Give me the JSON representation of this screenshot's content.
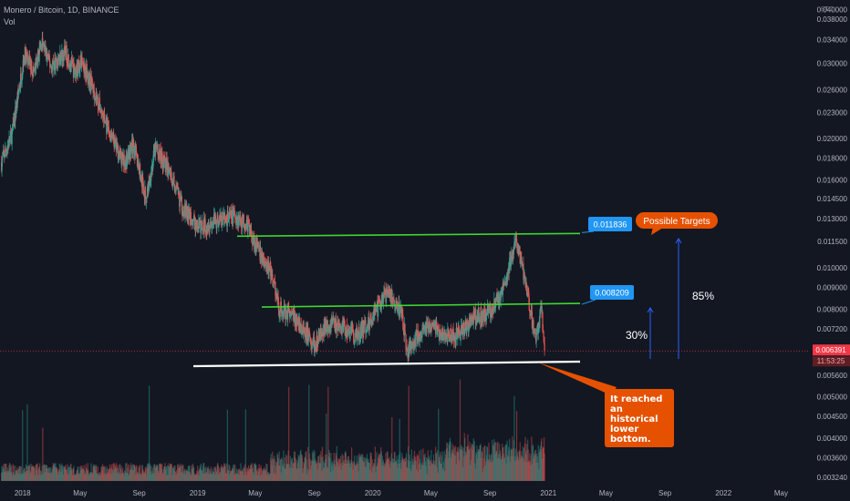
{
  "header": {
    "symbol_line": "Monero / Bitcoin, 1D, BINANCE",
    "volume_label": "Vol"
  },
  "chart_data": {
    "type": "candlestick",
    "title": "Monero / Bitcoin, 1D, BINANCE",
    "scale": "log",
    "currency_label": "BTC",
    "ylim": [
      0.00324,
      0.0409
    ],
    "y_ticks": [
      "0.040000",
      "0.038000",
      "0.034000",
      "0.030000",
      "0.026000",
      "0.023000",
      "0.020000",
      "0.018000",
      "0.016000",
      "0.014500",
      "0.013000",
      "0.011500",
      "0.010000",
      "0.009000",
      "0.008000",
      "0.007200",
      "0.005600",
      "0.005000",
      "0.004500",
      "0.004000",
      "0.003600",
      "0.003240"
    ],
    "x_ticks": [
      "2018",
      "May",
      "Sep",
      "2019",
      "May",
      "Sep",
      "2020",
      "May",
      "Sep",
      "2021",
      "May",
      "Sep",
      "2022",
      "May"
    ],
    "x_range": [
      "2017-11-15",
      "2022-06-30"
    ],
    "price_path": [
      [
        "2017-11-18",
        0.0176
      ],
      [
        "2017-12-10",
        0.0205
      ],
      [
        "2018-01-05",
        0.0315
      ],
      [
        "2018-01-25",
        0.0285
      ],
      [
        "2018-02-10",
        0.0335
      ],
      [
        "2018-03-01",
        0.0295
      ],
      [
        "2018-04-01",
        0.0318
      ],
      [
        "2018-04-20",
        0.0285
      ],
      [
        "2018-05-05",
        0.0305
      ],
      [
        "2018-06-01",
        0.0255
      ],
      [
        "2018-07-01",
        0.0205
      ],
      [
        "2018-08-01",
        0.0175
      ],
      [
        "2018-08-20",
        0.0195
      ],
      [
        "2018-09-15",
        0.0145
      ],
      [
        "2018-10-05",
        0.019
      ],
      [
        "2018-11-01",
        0.017
      ],
      [
        "2018-12-01",
        0.0138
      ],
      [
        "2019-01-01",
        0.0124
      ],
      [
        "2019-02-15",
        0.0129
      ],
      [
        "2019-03-20",
        0.0132
      ],
      [
        "2019-04-15",
        0.0126
      ],
      [
        "2019-05-01",
        0.0114
      ],
      [
        "2019-05-20",
        0.0102
      ],
      [
        "2019-06-01",
        0.01
      ],
      [
        "2019-06-20",
        0.008
      ],
      [
        "2019-07-15",
        0.0078
      ],
      [
        "2019-08-10",
        0.0072
      ],
      [
        "2019-09-01",
        0.0066
      ],
      [
        "2019-10-01",
        0.0074
      ],
      [
        "2019-11-01",
        0.0072
      ],
      [
        "2019-12-01",
        0.0069
      ],
      [
        "2020-01-01",
        0.0077
      ],
      [
        "2020-02-01",
        0.0088
      ],
      [
        "2020-03-01",
        0.0078
      ],
      [
        "2020-03-13",
        0.0064
      ],
      [
        "2020-04-01",
        0.0069
      ],
      [
        "2020-05-01",
        0.0074
      ],
      [
        "2020-06-01",
        0.0069
      ],
      [
        "2020-07-01",
        0.007
      ],
      [
        "2020-08-01",
        0.0077
      ],
      [
        "2020-09-01",
        0.0079
      ],
      [
        "2020-10-01",
        0.009
      ],
      [
        "2020-10-15",
        0.0105
      ],
      [
        "2020-10-26",
        0.0116
      ],
      [
        "2020-11-10",
        0.0098
      ],
      [
        "2020-11-25",
        0.0079
      ],
      [
        "2020-12-05",
        0.0068
      ],
      [
        "2020-12-12",
        0.0074
      ],
      [
        "2020-12-18",
        0.008
      ],
      [
        "2020-12-24",
        0.0064
      ]
    ],
    "current_price": "0.006391",
    "countdown": "11:53:25",
    "levels": [
      {
        "price": 0.011836,
        "label": "0.011836"
      },
      {
        "price": 0.008209,
        "label": "0.008209"
      }
    ],
    "annotations": {
      "targets_label": "Possible Targets",
      "bottom_note": [
        "It reached",
        "an",
        "historical",
        "lower",
        "bottom."
      ],
      "pct_30": "30%",
      "pct_85": "85%"
    },
    "colors": {
      "background": "#131722",
      "up": "#26a69a",
      "down": "#ef5350",
      "resistance": "#3ed62f",
      "support": "#ffffff",
      "label_blue": "#2196f3",
      "note_orange": "#e65100",
      "arrow_blue": "#2962ff",
      "price_red": "#f23645"
    }
  }
}
